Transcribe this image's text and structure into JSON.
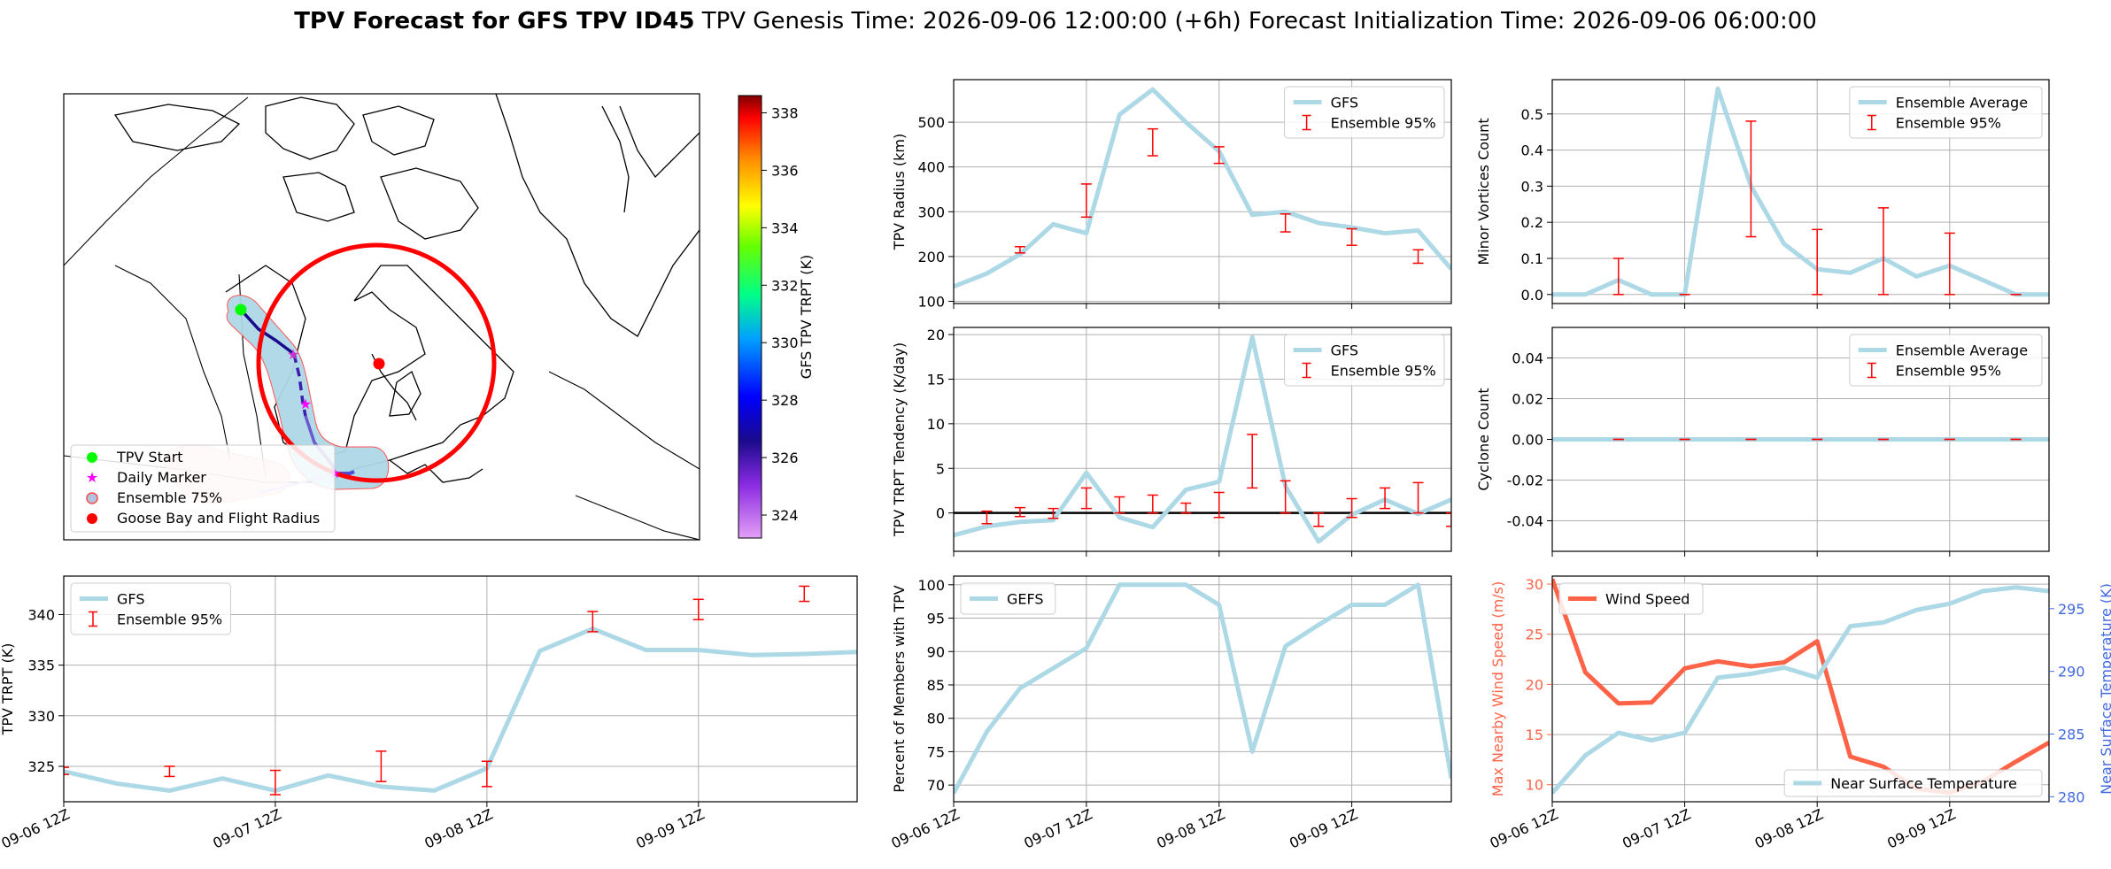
{
  "header": {
    "title_bold": "TPV Forecast for GFS TPV ID45",
    "genesis": "TPV Genesis Time: 2026-09-06 12:00:00 (+6h)",
    "init": "Forecast Initialization Time: 2026-09-06 06:00:00"
  },
  "colors": {
    "main_line": "#add8e6",
    "errorbar": "#ff0000",
    "wind": "#ff6347",
    "temp_axis": "#4169e1",
    "track_dark": "#1a0a8c",
    "track_light": "#c9b5f0",
    "start": "#00ff00",
    "daily": "#ff00ff",
    "goose": "#ff0000"
  },
  "time_ticks": [
    "09-06 12Z",
    "09-07 12Z",
    "09-08 12Z",
    "09-09 12Z"
  ],
  "map": {
    "legend": [
      "TPV Start",
      "Daily Marker",
      "Ensemble 75%",
      "Goose Bay and Flight Radius"
    ],
    "colorbar": {
      "label": "GFS TPV TRPT (K)",
      "ticks": [
        324,
        326,
        328,
        330,
        332,
        334,
        336,
        338
      ],
      "range": [
        323.2,
        338.6
      ]
    }
  },
  "chart_data": [
    {
      "id": "radius",
      "type": "line",
      "ylabel": "TPV Radius (km)",
      "legend": [
        "GFS",
        "Ensemble 95%"
      ],
      "ylim": [
        95,
        595
      ],
      "yticks": [
        100,
        200,
        300,
        400,
        500
      ],
      "x": [
        0,
        0.25,
        0.5,
        0.75,
        1,
        1.25,
        1.5,
        1.75,
        2,
        2.25,
        2.5,
        2.75,
        3,
        3.25,
        3.5,
        3.75
      ],
      "values": [
        133,
        162,
        205,
        272,
        252,
        517,
        573,
        500,
        435,
        293,
        300,
        275,
        265,
        252,
        258,
        172
      ],
      "errorbars": [
        {
          "x": 0.5,
          "low": 208,
          "high": 222
        },
        {
          "x": 1,
          "low": 288,
          "high": 362
        },
        {
          "x": 1.5,
          "low": 425,
          "high": 485
        },
        {
          "x": 2,
          "low": 408,
          "high": 445
        },
        {
          "x": 2.5,
          "low": 255,
          "high": 295
        },
        {
          "x": 3,
          "low": 225,
          "high": 262
        },
        {
          "x": 3.5,
          "low": 185,
          "high": 215
        }
      ],
      "grid": true,
      "legend_position": "upper right"
    },
    {
      "id": "minor_vortices",
      "type": "line",
      "ylabel": "Minor Vortices Count",
      "legend": [
        "Ensemble Average",
        "Ensemble 95%"
      ],
      "ylim": [
        -0.025,
        0.595
      ],
      "yticks": [
        0.0,
        0.1,
        0.2,
        0.3,
        0.4,
        0.5
      ],
      "x": [
        0,
        0.25,
        0.5,
        0.75,
        1,
        1.25,
        1.5,
        1.75,
        2,
        2.25,
        2.5,
        2.75,
        3,
        3.25,
        3.5,
        3.75
      ],
      "values": [
        0,
        0,
        0.04,
        0,
        0,
        0.57,
        0.3,
        0.14,
        0.07,
        0.06,
        0.1,
        0.05,
        0.08,
        0.04,
        0,
        0
      ],
      "errorbars": [
        {
          "x": 0.5,
          "low": 0,
          "high": 0.1
        },
        {
          "x": 1,
          "low": 0,
          "high": 0
        },
        {
          "x": 1.5,
          "low": 0.16,
          "high": 0.48
        },
        {
          "x": 2,
          "low": 0,
          "high": 0.18
        },
        {
          "x": 2.5,
          "low": 0,
          "high": 0.24
        },
        {
          "x": 3,
          "low": 0,
          "high": 0.17
        },
        {
          "x": 3.5,
          "low": 0,
          "high": 0
        }
      ],
      "grid": true,
      "legend_position": "upper right"
    },
    {
      "id": "tendency",
      "type": "line",
      "ylabel": "TPV TRPT Tendency (K/day)",
      "legend": [
        "GFS",
        "Ensemble 95%"
      ],
      "ylim": [
        -4.3,
        20.8
      ],
      "yticks": [
        0,
        5,
        10,
        15,
        20
      ],
      "zero_line": true,
      "x": [
        0,
        0.25,
        0.5,
        0.75,
        1,
        1.25,
        1.5,
        1.75,
        2,
        2.25,
        2.5,
        2.75,
        3,
        3.25,
        3.5,
        3.75
      ],
      "values": [
        -2.5,
        -1.5,
        -1,
        -0.8,
        4.5,
        -0.5,
        -1.6,
        2.6,
        3.5,
        19.7,
        3,
        -3.2,
        -0.2,
        1.5,
        -0.1,
        1.5
      ],
      "errorbars": [
        {
          "x": 0.25,
          "low": -1.2,
          "high": 0.2
        },
        {
          "x": 0.5,
          "low": -0.4,
          "high": 0.6
        },
        {
          "x": 0.75,
          "low": -0.6,
          "high": 0.5
        },
        {
          "x": 1,
          "low": 0.5,
          "high": 2.8
        },
        {
          "x": 1.25,
          "low": 0,
          "high": 1.8
        },
        {
          "x": 1.5,
          "low": 0,
          "high": 2
        },
        {
          "x": 1.75,
          "low": 0,
          "high": 1.1
        },
        {
          "x": 2,
          "low": -0.5,
          "high": 2.3
        },
        {
          "x": 2.25,
          "low": 2.8,
          "high": 8.8
        },
        {
          "x": 2.5,
          "low": 0,
          "high": 3.6
        },
        {
          "x": 2.75,
          "low": -1.5,
          "high": 0
        },
        {
          "x": 3,
          "low": -0.5,
          "high": 1.6
        },
        {
          "x": 3.25,
          "low": 0.5,
          "high": 2.8
        },
        {
          "x": 3.5,
          "low": 0,
          "high": 3.4
        },
        {
          "x": 3.75,
          "low": -1.5,
          "high": 0
        }
      ],
      "grid": true,
      "legend_position": "upper right"
    },
    {
      "id": "cyclone",
      "type": "line",
      "ylabel": "Cyclone Count",
      "legend": [
        "Ensemble Average",
        "Ensemble 95%"
      ],
      "ylim": [
        -0.055,
        0.055
      ],
      "yticks": [
        -0.04,
        -0.02,
        0.0,
        0.02,
        0.04
      ],
      "x": [
        0,
        3.75
      ],
      "values": [
        0,
        0
      ],
      "errorbars": [
        {
          "x": 0.5,
          "low": 0,
          "high": 0
        },
        {
          "x": 1,
          "low": 0,
          "high": 0
        },
        {
          "x": 1.5,
          "low": 0,
          "high": 0
        },
        {
          "x": 2,
          "low": 0,
          "high": 0
        },
        {
          "x": 2.5,
          "low": 0,
          "high": 0
        },
        {
          "x": 3,
          "low": 0,
          "high": 0
        },
        {
          "x": 3.5,
          "low": 0,
          "high": 0
        }
      ],
      "grid": true,
      "legend_position": "upper right"
    },
    {
      "id": "trpt",
      "type": "line",
      "ylabel": "TPV TRPT (K)",
      "legend": [
        "GFS",
        "Ensemble 95%"
      ],
      "ylim": [
        321.5,
        343.8
      ],
      "yticks": [
        325,
        330,
        335,
        340
      ],
      "x": [
        0,
        0.25,
        0.5,
        0.75,
        1,
        1.25,
        1.5,
        1.75,
        2,
        2.25,
        2.5,
        2.75,
        3,
        3.25,
        3.5,
        3.75
      ],
      "values": [
        324.5,
        323.3,
        322.6,
        323.8,
        322.6,
        324.1,
        323,
        322.6,
        324.8,
        336.4,
        338.6,
        336.5,
        336.5,
        336,
        336.1,
        336.3
      ],
      "errorbars": [
        {
          "x": 0,
          "low": 324.2,
          "high": 324.9
        },
        {
          "x": 0.5,
          "low": 324,
          "high": 325
        },
        {
          "x": 1,
          "low": 322.2,
          "high": 324.6
        },
        {
          "x": 1.5,
          "low": 323.5,
          "high": 326.5
        },
        {
          "x": 2,
          "low": 323,
          "high": 325.5
        },
        {
          "x": 2.5,
          "low": 338.3,
          "high": 340.3
        },
        {
          "x": 3,
          "low": 339.5,
          "high": 341.5
        },
        {
          "x": 3.5,
          "low": 341.3,
          "high": 342.8
        }
      ],
      "grid": true,
      "legend_position": "upper left"
    },
    {
      "id": "members",
      "type": "line",
      "ylabel": "Percent of Members with TPV",
      "legend": [
        "GEFS"
      ],
      "ylim": [
        67.5,
        101.3
      ],
      "yticks": [
        70,
        75,
        80,
        85,
        90,
        95,
        100
      ],
      "x": [
        0,
        0.25,
        0.5,
        0.75,
        1,
        1.25,
        1.5,
        1.75,
        2,
        2.25,
        2.5,
        2.75,
        3,
        3.25,
        3.5,
        3.75
      ],
      "values": [
        68.8,
        78,
        84.5,
        87.5,
        90.5,
        100,
        100,
        100,
        97,
        75,
        90.8,
        94,
        97,
        97,
        100,
        71
      ],
      "grid": true,
      "legend_position": "upper left"
    },
    {
      "id": "wind_temp",
      "type": "line",
      "ylabel": "Max Nearby Wind Speed (m/s)",
      "ylabel_right": "Near Surface Temperature (K)",
      "legend": [
        "Wind Speed"
      ],
      "legend_right": [
        "Near Surface Temperature"
      ],
      "ylim": [
        8.3,
        30.8
      ],
      "yticks": [
        10,
        15,
        20,
        25,
        30
      ],
      "ylim_right": [
        279.6,
        297.6
      ],
      "yticks_right": [
        280,
        285,
        290,
        295
      ],
      "x": [
        0,
        0.25,
        0.5,
        0.75,
        1,
        1.25,
        1.5,
        1.75,
        2,
        2.25,
        2.5,
        2.75,
        3,
        3.25,
        3.5,
        3.75
      ],
      "series": [
        {
          "name": "Wind Speed",
          "axis": "left",
          "values": [
            30.5,
            21.2,
            18.1,
            18.2,
            21.6,
            22.3,
            21.8,
            22.2,
            24.3,
            12.8,
            11.8,
            9.6,
            9.2,
            10.3,
            12.3,
            14.2
          ]
        },
        {
          "name": "Near Surface Temperature",
          "axis": "right",
          "values": [
            280.3,
            283.3,
            285.1,
            284.5,
            285.1,
            289.5,
            289.8,
            290.3,
            289.5,
            293.6,
            293.9,
            294.9,
            295.4,
            296.4,
            296.7,
            296.4
          ]
        }
      ],
      "grid": true,
      "legend_position": "upper left"
    }
  ]
}
